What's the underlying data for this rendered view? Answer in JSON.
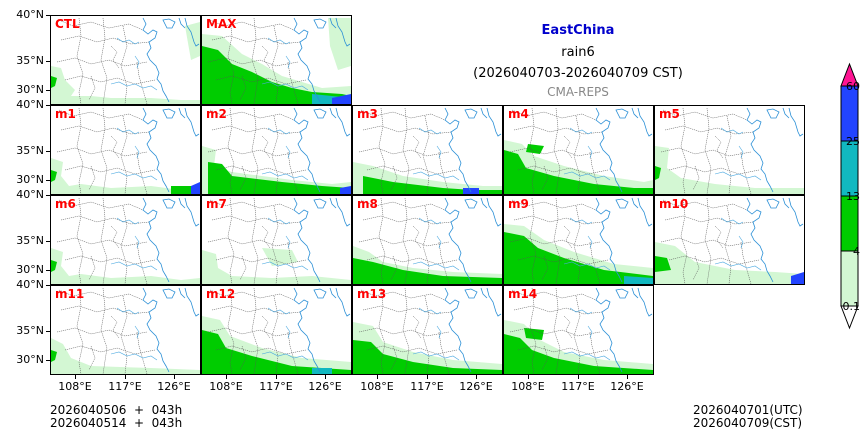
{
  "title": {
    "region": "EastChina",
    "variable": "rain6",
    "period": "(2026040703-2026040709 CST)",
    "source": "CMA-REPS"
  },
  "panels": [
    {
      "id": "CTL"
    },
    {
      "id": "MAX"
    },
    {
      "id": "m1"
    },
    {
      "id": "m2"
    },
    {
      "id": "m3"
    },
    {
      "id": "m4"
    },
    {
      "id": "m5"
    },
    {
      "id": "m6"
    },
    {
      "id": "m7"
    },
    {
      "id": "m8"
    },
    {
      "id": "m9"
    },
    {
      "id": "m10"
    },
    {
      "id": "m11"
    },
    {
      "id": "m12"
    },
    {
      "id": "m13"
    },
    {
      "id": "m14"
    }
  ],
  "axes": {
    "lat_ticks": [
      "40°N",
      "35°N",
      "30°N"
    ],
    "lon_ticks": [
      "108°E",
      "117°E",
      "126°E"
    ]
  },
  "colorbar": {
    "levels": [
      "0.1",
      "4",
      "13",
      "25",
      "60"
    ],
    "colors": [
      "#d3f7d3",
      "#00cc00",
      "#11b8c0",
      "#2244ff",
      "#ff1493"
    ]
  },
  "footer": {
    "left_line1": "2026040506  +  043h",
    "left_line2": "2026040514  +  043h",
    "right_line1": "2026040701(UTC)",
    "right_line2": "2026040709(CST)"
  }
}
